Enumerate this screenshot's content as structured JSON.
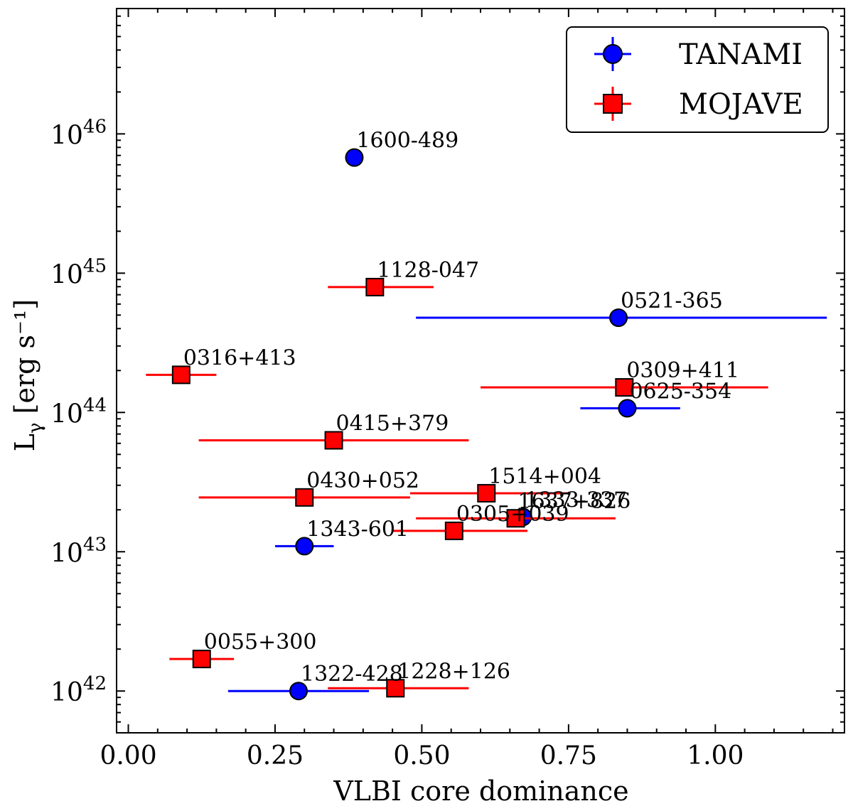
{
  "chart_data": {
    "type": "scatter",
    "xlabel": "VLBI core dominance",
    "ylabel": "Lγ [erg s⁻¹]",
    "xlim": [
      -0.02,
      1.22
    ],
    "ylim_exponent": [
      41.7,
      46.9
    ],
    "yscale": "log",
    "x_ticks": [
      {
        "value": 0.0,
        "label": "0.00"
      },
      {
        "value": 0.25,
        "label": "0.25"
      },
      {
        "value": 0.5,
        "label": "0.50"
      },
      {
        "value": 0.75,
        "label": "0.75"
      },
      {
        "value": 1.0,
        "label": "1.00"
      }
    ],
    "y_ticks": [
      {
        "exp": 42,
        "base": "10",
        "power": "42"
      },
      {
        "exp": 43,
        "base": "10",
        "power": "43"
      },
      {
        "exp": 44,
        "base": "10",
        "power": "44"
      },
      {
        "exp": 45,
        "base": "10",
        "power": "45"
      },
      {
        "exp": 46,
        "base": "10",
        "power": "46"
      }
    ],
    "legend_position": "top-right",
    "series": [
      {
        "name": "TANAMI",
        "marker": "circle",
        "color": "#0000ff",
        "points": [
          {
            "label": "1600-489",
            "x": 0.385,
            "y_exp": 45.83,
            "xerr": [
              0.385,
              0.385
            ]
          },
          {
            "label": "0521-365",
            "x": 0.835,
            "y_exp": 44.68,
            "xerr": [
              0.49,
              1.19
            ]
          },
          {
            "label": "0625-354",
            "x": 0.85,
            "y_exp": 44.03,
            "xerr": [
              0.77,
              0.94
            ]
          },
          {
            "label": "1343-601",
            "x": 0.3,
            "y_exp": 43.04,
            "xerr": [
              0.25,
              0.35
            ]
          },
          {
            "label": "1322-428",
            "x": 0.29,
            "y_exp": 42.0,
            "xerr": [
              0.17,
              0.41
            ]
          },
          {
            "label": "1333-337",
            "x": 0.672,
            "y_exp": 43.25,
            "xerr": [
              0.672,
              0.672
            ]
          }
        ]
      },
      {
        "name": "MOJAVE",
        "marker": "square",
        "color": "#ff0000",
        "points": [
          {
            "label": "1128-047",
            "x": 0.42,
            "y_exp": 44.9,
            "xerr": [
              0.34,
              0.52
            ]
          },
          {
            "label": "0316+413",
            "x": 0.09,
            "y_exp": 44.27,
            "xerr": [
              0.03,
              0.15
            ]
          },
          {
            "label": "0309+411",
            "x": 0.845,
            "y_exp": 44.18,
            "xerr": [
              0.6,
              1.09
            ]
          },
          {
            "label": "0415+379",
            "x": 0.35,
            "y_exp": 43.8,
            "xerr": [
              0.12,
              0.58
            ]
          },
          {
            "label": "0430+052",
            "x": 0.3,
            "y_exp": 43.39,
            "xerr": [
              0.12,
              0.48
            ]
          },
          {
            "label": "1514+004",
            "x": 0.61,
            "y_exp": 43.42,
            "xerr": [
              0.48,
              0.75
            ]
          },
          {
            "label": "1637+826",
            "x": 0.66,
            "y_exp": 43.24,
            "xerr": [
              0.49,
              0.83
            ]
          },
          {
            "label": "0305+039",
            "x": 0.555,
            "y_exp": 43.15,
            "xerr": [
              0.45,
              0.68
            ]
          },
          {
            "label": "0055+300",
            "x": 0.125,
            "y_exp": 42.23,
            "xerr": [
              0.07,
              0.18
            ]
          },
          {
            "label": "1228+126",
            "x": 0.455,
            "y_exp": 42.02,
            "xerr": [
              0.34,
              0.58
            ]
          }
        ]
      }
    ]
  }
}
